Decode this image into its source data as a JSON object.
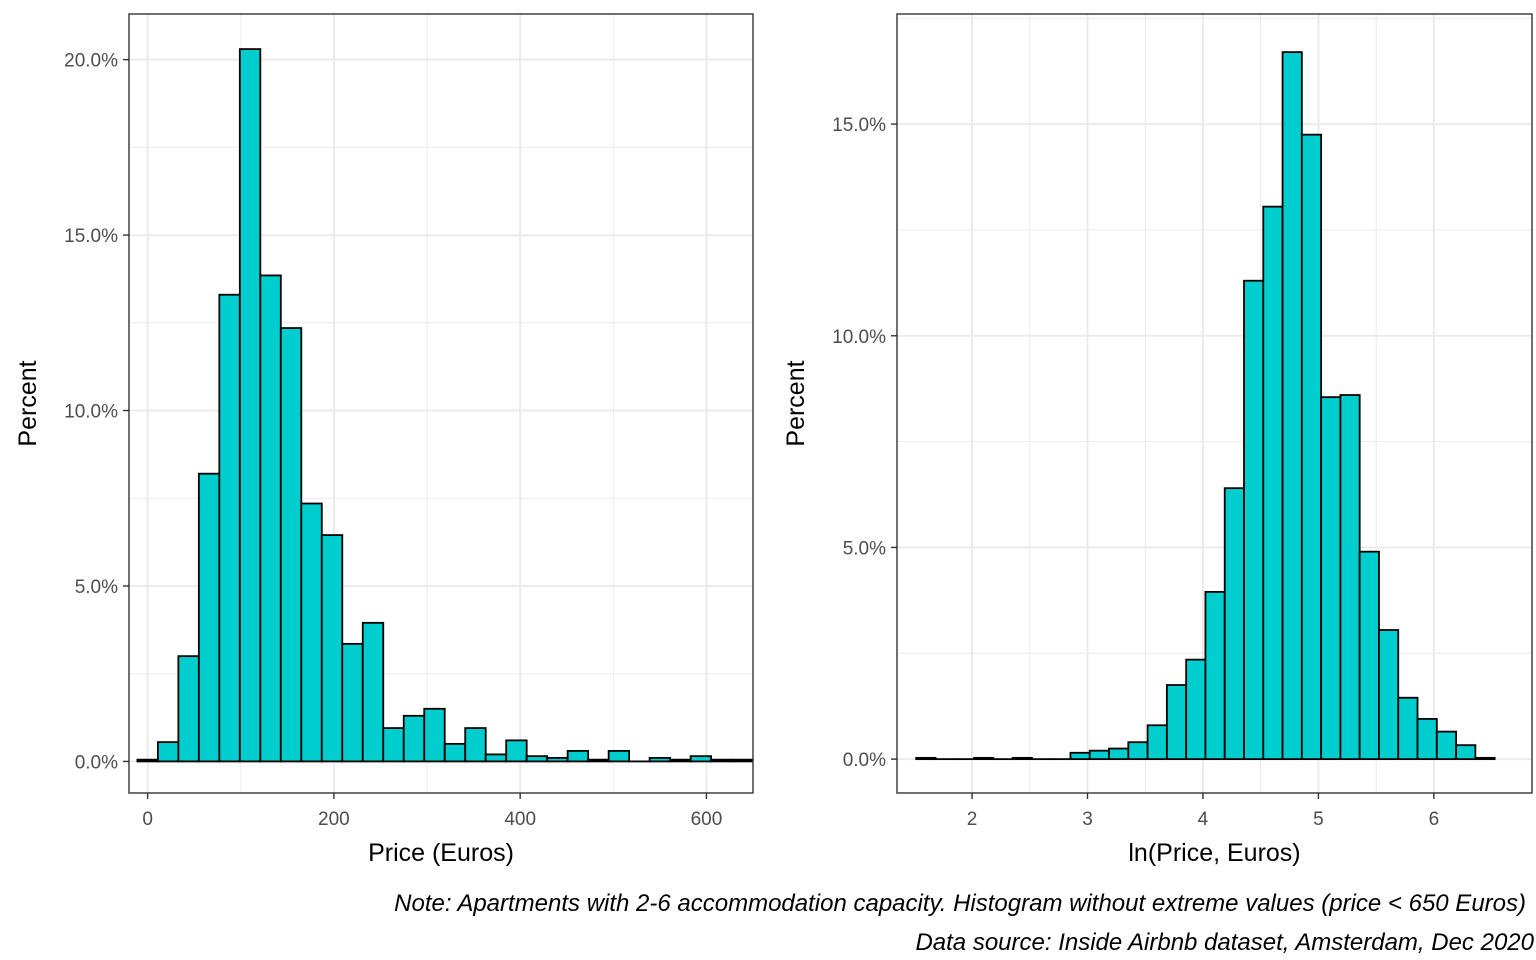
{
  "colors": {
    "bar_fill": "#00CDCD",
    "bar_stroke": "#000000",
    "grid": "#EBEBEB",
    "panel_border": "#333333",
    "tick_text": "#4D4D4D"
  },
  "caption": {
    "note": "Note: Apartments with 2-6 accommodation capacity. Histogram without extreme values (price < 650 Euros)",
    "source": "Data source: Inside Airbnb dataset, Amsterdam, Dec 2020"
  },
  "chart_data": [
    {
      "type": "bar",
      "title": "",
      "xlabel": "Price (Euros)",
      "ylabel": "Percent",
      "xlim": [
        -20,
        650
      ],
      "ylim": [
        -0.9,
        21.3
      ],
      "x_ticks": [
        0,
        200,
        400,
        600
      ],
      "x_tick_labels": [
        "0",
        "200",
        "400",
        "600"
      ],
      "y_ticks": [
        0,
        5,
        10,
        15,
        20
      ],
      "y_tick_labels": [
        "0.0%",
        "5.0%",
        "10.0%",
        "15.0%",
        "20.0%"
      ],
      "grid": true,
      "bin_width": 22,
      "bin_centers": [
        0,
        22,
        44,
        66,
        88,
        110,
        132,
        154,
        176,
        198,
        220,
        242,
        264,
        286,
        308,
        330,
        352,
        374,
        396,
        418,
        440,
        462,
        484,
        506,
        528,
        550,
        572,
        594,
        616,
        638
      ],
      "values": [
        0.05,
        0.55,
        3.0,
        8.2,
        13.3,
        20.3,
        13.85,
        12.35,
        7.35,
        6.45,
        3.35,
        3.95,
        0.95,
        1.3,
        1.5,
        0.5,
        0.95,
        0.2,
        0.6,
        0.15,
        0.1,
        0.3,
        0.05,
        0.3,
        0.0,
        0.1,
        0.05,
        0.15,
        0.05,
        0.05
      ]
    },
    {
      "type": "bar",
      "title": "",
      "xlabel": "ln(Price, Euros)",
      "ylabel": "Percent",
      "xlim": [
        1.35,
        6.85
      ],
      "ylim": [
        -0.8,
        17.6
      ],
      "x_ticks": [
        2,
        3,
        4,
        5,
        6
      ],
      "x_tick_labels": [
        "2",
        "3",
        "4",
        "5",
        "6"
      ],
      "y_ticks": [
        0,
        5,
        10,
        15
      ],
      "y_tick_labels": [
        "0.0%",
        "5.0%",
        "10.0%",
        "15.0%"
      ],
      "grid": true,
      "bin_width": 0.167,
      "bin_centers": [
        1.6,
        1.767,
        1.934,
        2.101,
        2.268,
        2.435,
        2.602,
        2.769,
        2.936,
        3.103,
        3.27,
        3.437,
        3.604,
        3.771,
        3.938,
        4.105,
        4.272,
        4.439,
        4.606,
        4.773,
        4.94,
        5.107,
        5.274,
        5.441,
        5.608,
        5.775,
        5.942,
        6.109,
        6.276,
        6.443
      ],
      "values": [
        0.03,
        0.0,
        0.0,
        0.03,
        0.0,
        0.03,
        0.0,
        0.0,
        0.15,
        0.2,
        0.25,
        0.4,
        0.8,
        1.75,
        2.35,
        3.95,
        6.4,
        11.3,
        13.05,
        16.7,
        14.75,
        8.55,
        8.6,
        4.9,
        3.05,
        1.45,
        0.95,
        0.65,
        0.33,
        0.03
      ]
    }
  ]
}
